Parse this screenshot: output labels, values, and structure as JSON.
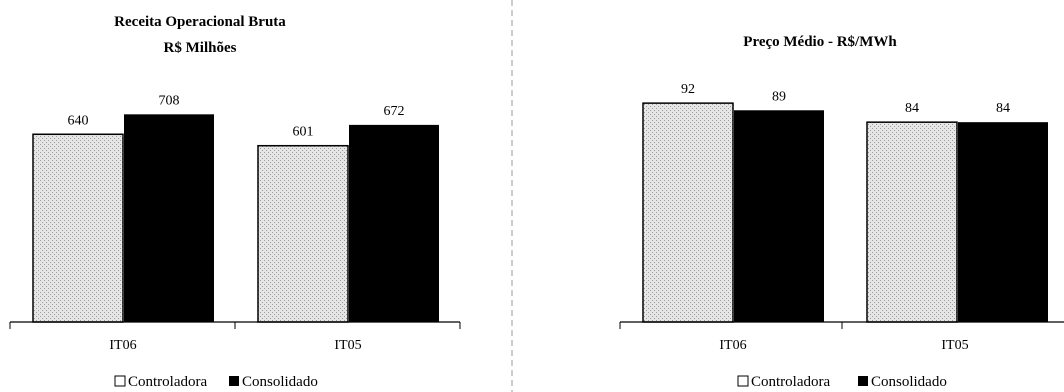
{
  "colors": {
    "controladora_fill": "#e6e6e6",
    "controladora_stipple": "#9a9a9a",
    "consolidado_fill": "#000000"
  },
  "chart_data": [
    {
      "type": "bar",
      "title": "Receita Operacional Bruta",
      "subtitle": "R$ Milhões",
      "categories": [
        "IT06",
        "IT05"
      ],
      "series": [
        {
          "name": "Controladora",
          "values": [
            640,
            601
          ]
        },
        {
          "name": "Consolidado",
          "values": [
            708,
            672
          ]
        }
      ],
      "ylim": [
        0,
        750
      ],
      "grid": false,
      "legend": "bottom",
      "legend_labels": [
        "Controladora",
        "Consolidado"
      ]
    },
    {
      "type": "bar",
      "title": "Preço Médio - R$/MWh",
      "categories": [
        "IT06",
        "IT05"
      ],
      "series": [
        {
          "name": "Controladora",
          "values": [
            92,
            84
          ]
        },
        {
          "name": "Consolidado",
          "values": [
            89,
            84
          ]
        }
      ],
      "ylim": [
        0,
        95
      ],
      "grid": false,
      "legend": "bottom",
      "legend_labels": [
        "Controladora",
        "Consolidado"
      ]
    }
  ]
}
